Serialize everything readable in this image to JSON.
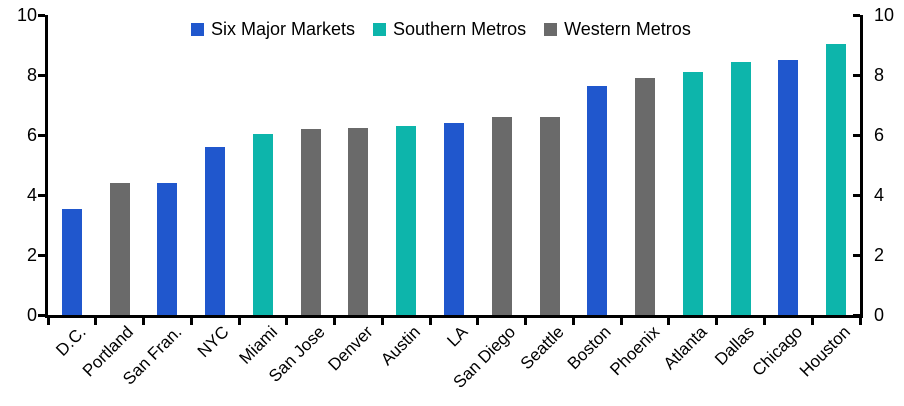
{
  "chart_data": {
    "type": "bar",
    "title": "",
    "xlabel": "",
    "ylabel": "",
    "ylim": [
      0,
      10
    ],
    "yticks": [
      0,
      2,
      4,
      6,
      8,
      10
    ],
    "grid": false,
    "legend_position": "top",
    "axis_color": "#000000",
    "dual_y_axis": true,
    "groups": [
      {
        "name": "Six Major Markets",
        "color": "#2057CD"
      },
      {
        "name": "Southern Metros",
        "color": "#0DB5AB"
      },
      {
        "name": "Western Metros",
        "color": "#6A6A6A"
      }
    ],
    "bars": [
      {
        "label": "D.C.",
        "value": 3.55,
        "group": "Six Major Markets"
      },
      {
        "label": "Portland",
        "value": 4.4,
        "group": "Western Metros"
      },
      {
        "label": "San Fran.",
        "value": 4.4,
        "group": "Six Major Markets"
      },
      {
        "label": "NYC",
        "value": 5.6,
        "group": "Six Major Markets"
      },
      {
        "label": "Miami",
        "value": 6.05,
        "group": "Southern Metros"
      },
      {
        "label": "San Jose",
        "value": 6.2,
        "group": "Western Metros"
      },
      {
        "label": "Denver",
        "value": 6.25,
        "group": "Western Metros"
      },
      {
        "label": "Austin",
        "value": 6.3,
        "group": "Southern Metros"
      },
      {
        "label": "LA",
        "value": 6.4,
        "group": "Six Major Markets"
      },
      {
        "label": "San Diego",
        "value": 6.6,
        "group": "Western Metros"
      },
      {
        "label": "Seattle",
        "value": 6.6,
        "group": "Western Metros"
      },
      {
        "label": "Boston",
        "value": 7.65,
        "group": "Six Major Markets"
      },
      {
        "label": "Phoenix",
        "value": 7.9,
        "group": "Western Metros"
      },
      {
        "label": "Atlanta",
        "value": 8.1,
        "group": "Southern Metros"
      },
      {
        "label": "Dallas",
        "value": 8.45,
        "group": "Southern Metros"
      },
      {
        "label": "Chicago",
        "value": 8.5,
        "group": "Six Major Markets"
      },
      {
        "label": "Houston",
        "value": 9.05,
        "group": "Southern Metros"
      }
    ]
  }
}
